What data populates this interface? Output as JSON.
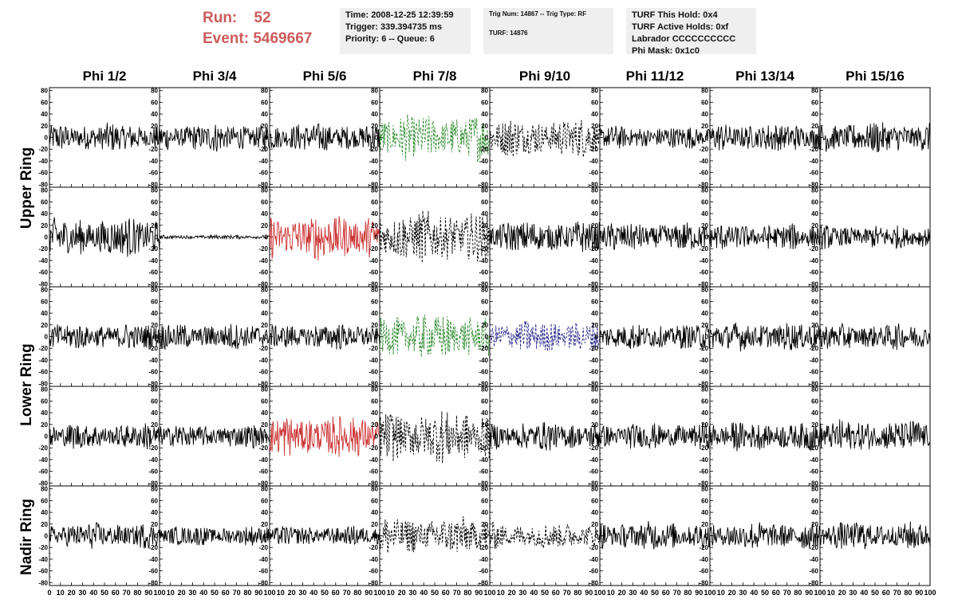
{
  "header": {
    "run_label": "Run:",
    "run_value": "52",
    "event_label": "Event:",
    "event_value": "5469667"
  },
  "info_time": {
    "time": "Time: 2008-12-25 12:39:59",
    "trigger": "Trigger: 339.394735 ms",
    "priority": "Priority: 6 -- Queue: 6"
  },
  "info_trig": {
    "trig": "Trig Num: 14867 -- Trig Type: RF",
    "turf": "TURF: 14876"
  },
  "info_turf": {
    "hold": "TURF This Hold: 0x4",
    "active": "TURF Active Holds: 0xf",
    "labrador": "Labrador CCCCCCCCCC",
    "mask": "Phi Mask: 0x1c0"
  },
  "ring_labels": {
    "upper": "Upper Ring",
    "lower": "Lower Ring",
    "nadir": "Nadir Ring"
  },
  "chart_data": {
    "type": "line",
    "phi_labels": [
      "Phi 1/2",
      "Phi 3/4",
      "Phi 5/6",
      "Phi 7/8",
      "Phi 9/10",
      "Phi 11/12",
      "Phi 13/14",
      "Phi 15/16"
    ],
    "xlim": [
      0,
      100
    ],
    "ylim": [
      -85,
      85
    ],
    "x_ticks": [
      0,
      10,
      20,
      30,
      40,
      50,
      60,
      70,
      80,
      90,
      100
    ],
    "y_ticks": [
      -80,
      -60,
      -40,
      -20,
      0,
      20,
      40,
      60,
      80
    ],
    "colors": {
      "black": "#000000",
      "green": "#2e8b2e",
      "blue": "#2a2a8f",
      "red": "#cc3333"
    },
    "note_amplitude_units": "approximate peak amplitude per panel read from axes",
    "panels": [
      [
        {
          "amp": 22,
          "color": "black",
          "dashed": false
        },
        {
          "amp": 22,
          "color": "black",
          "dashed": false
        },
        {
          "amp": 22,
          "color": "black",
          "dashed": false
        },
        {
          "amp": 35,
          "color": "green",
          "dashed": true
        },
        {
          "amp": 30,
          "color": "black",
          "dashed": true
        },
        {
          "amp": 18,
          "color": "black",
          "dashed": false
        },
        {
          "amp": 22,
          "color": "black",
          "dashed": false
        },
        {
          "amp": 24,
          "color": "black",
          "dashed": false
        }
      ],
      [
        {
          "amp": 30,
          "color": "black",
          "dashed": false
        },
        {
          "amp": 3,
          "color": "black",
          "dashed": false
        },
        {
          "amp": 35,
          "color": "red",
          "dashed": false
        },
        {
          "amp": 40,
          "color": "black",
          "dashed": true
        },
        {
          "amp": 25,
          "color": "black",
          "dashed": false
        },
        {
          "amp": 22,
          "color": "black",
          "dashed": false
        },
        {
          "amp": 20,
          "color": "black",
          "dashed": false
        },
        {
          "amp": 18,
          "color": "black",
          "dashed": false
        }
      ],
      [
        {
          "amp": 20,
          "color": "black",
          "dashed": false
        },
        {
          "amp": 20,
          "color": "black",
          "dashed": false
        },
        {
          "amp": 20,
          "color": "black",
          "dashed": false
        },
        {
          "amp": 35,
          "color": "green",
          "dashed": true
        },
        {
          "amp": 25,
          "color": "blue",
          "dashed": true
        },
        {
          "amp": 20,
          "color": "black",
          "dashed": false
        },
        {
          "amp": 22,
          "color": "black",
          "dashed": false
        },
        {
          "amp": 20,
          "color": "black",
          "dashed": false
        }
      ],
      [
        {
          "amp": 20,
          "color": "black",
          "dashed": false
        },
        {
          "amp": 18,
          "color": "black",
          "dashed": false
        },
        {
          "amp": 32,
          "color": "red",
          "dashed": false
        },
        {
          "amp": 40,
          "color": "black",
          "dashed": true
        },
        {
          "amp": 22,
          "color": "black",
          "dashed": false
        },
        {
          "amp": 20,
          "color": "black",
          "dashed": false
        },
        {
          "amp": 22,
          "color": "black",
          "dashed": false
        },
        {
          "amp": 25,
          "color": "black",
          "dashed": false
        }
      ],
      [
        {
          "amp": 20,
          "color": "black",
          "dashed": false
        },
        {
          "amp": 15,
          "color": "black",
          "dashed": false
        },
        {
          "amp": 15,
          "color": "black",
          "dashed": false
        },
        {
          "amp": 30,
          "color": "black",
          "dashed": true
        },
        {
          "amp": 20,
          "color": "black",
          "dashed": true
        },
        {
          "amp": 22,
          "color": "black",
          "dashed": false
        },
        {
          "amp": 22,
          "color": "black",
          "dashed": false
        },
        {
          "amp": 22,
          "color": "black",
          "dashed": false
        }
      ]
    ]
  }
}
